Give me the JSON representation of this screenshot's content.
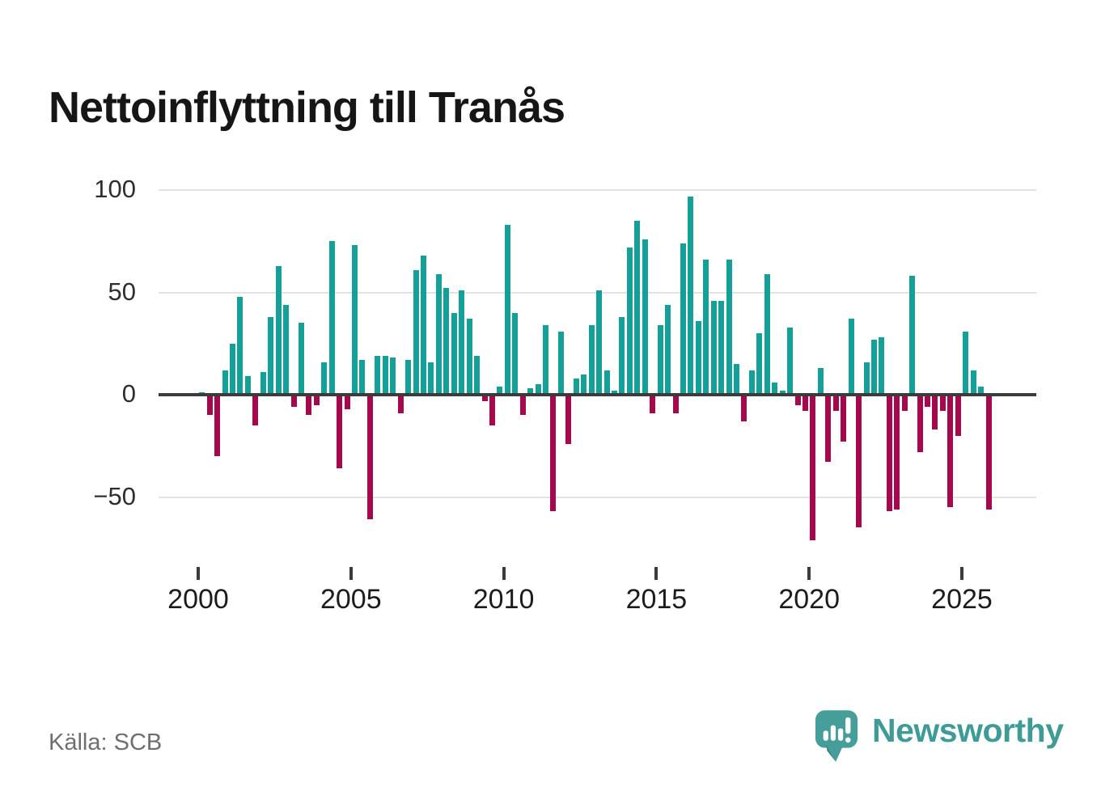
{
  "title": "Nettoinflyttning till Tranås",
  "source": "Källa: SCB",
  "logo": {
    "text": "Newsworthy"
  },
  "colors": {
    "positive_bar": "#14a099",
    "negative_bar": "#a5084d",
    "gridline": "#e3e3e3",
    "zero_axis": "#3b3b3b",
    "logo_teal": "#459e99",
    "logo_text": "#3e9b95"
  },
  "chart_data": {
    "type": "bar",
    "title": "Nettoinflyttning till Tranås",
    "xlabel": "",
    "ylabel": "",
    "frequency": "quarterly",
    "grid": true,
    "legend": "none",
    "ylim": [
      -84,
      104
    ],
    "y_ticks": [
      {
        "label": "100",
        "value": 100
      },
      {
        "label": "50",
        "value": 50
      },
      {
        "label": "0",
        "value": 0
      },
      {
        "label": "−50",
        "value": -50
      }
    ],
    "x_ticks": [
      {
        "label": "2000",
        "year": 2000
      },
      {
        "label": "2005",
        "year": 2005
      },
      {
        "label": "2010",
        "year": 2010
      },
      {
        "label": "2015",
        "year": 2015
      },
      {
        "label": "2020",
        "year": 2020
      },
      {
        "label": "2025",
        "year": 2025
      }
    ],
    "categories": [
      "2000Q1",
      "2000Q2",
      "2000Q3",
      "2000Q4",
      "2001Q1",
      "2001Q2",
      "2001Q3",
      "2001Q4",
      "2002Q1",
      "2002Q2",
      "2002Q3",
      "2002Q4",
      "2003Q1",
      "2003Q2",
      "2003Q3",
      "2003Q4",
      "2004Q1",
      "2004Q2",
      "2004Q3",
      "2004Q4",
      "2005Q1",
      "2005Q2",
      "2005Q3",
      "2005Q4",
      "2006Q1",
      "2006Q2",
      "2006Q3",
      "2006Q4",
      "2007Q1",
      "2007Q2",
      "2007Q3",
      "2007Q4",
      "2008Q1",
      "2008Q2",
      "2008Q3",
      "2008Q4",
      "2009Q1",
      "2009Q2",
      "2009Q3",
      "2009Q4",
      "2010Q1",
      "2010Q2",
      "2010Q3",
      "2010Q4",
      "2011Q1",
      "2011Q2",
      "2011Q3",
      "2011Q4",
      "2012Q1",
      "2012Q2",
      "2012Q3",
      "2012Q4",
      "2013Q1",
      "2013Q2",
      "2013Q3",
      "2013Q4",
      "2014Q1",
      "2014Q2",
      "2014Q3",
      "2014Q4",
      "2015Q1",
      "2015Q2",
      "2015Q3",
      "2015Q4",
      "2016Q1",
      "2016Q2",
      "2016Q3",
      "2016Q4",
      "2017Q1",
      "2017Q2",
      "2017Q3",
      "2017Q4",
      "2018Q1",
      "2018Q2",
      "2018Q3",
      "2018Q4",
      "2019Q1",
      "2019Q2",
      "2019Q3",
      "2019Q4",
      "2020Q1",
      "2020Q2",
      "2020Q3",
      "2020Q4",
      "2021Q1",
      "2021Q2",
      "2021Q3",
      "2021Q4",
      "2022Q1",
      "2022Q2",
      "2022Q3",
      "2022Q4",
      "2023Q1",
      "2023Q2",
      "2023Q3",
      "2023Q4",
      "2024Q1",
      "2024Q2",
      "2024Q3",
      "2024Q4",
      "2025Q1",
      "2025Q2",
      "2025Q3",
      "2025Q4"
    ],
    "values": [
      1,
      -10,
      -30,
      12,
      25,
      48,
      9,
      -15,
      11,
      38,
      63,
      44,
      -6,
      35,
      -10,
      -5,
      16,
      75,
      -36,
      -7,
      73,
      17,
      -61,
      19,
      19,
      18,
      -9,
      17,
      61,
      68,
      16,
      59,
      52,
      40,
      51,
      37,
      19,
      -3,
      -15,
      4,
      83,
      40,
      -10,
      3,
      5,
      34,
      -57,
      31,
      -24,
      8,
      10,
      34,
      51,
      12,
      2,
      38,
      72,
      85,
      76,
      -9,
      34,
      44,
      -9,
      74,
      97,
      36,
      66,
      46,
      46,
      66,
      15,
      -13,
      12,
      30,
      59,
      6,
      2,
      33,
      -5,
      -8,
      -71,
      13,
      -33,
      -8,
      -23,
      37,
      -65,
      16,
      27,
      28,
      -57,
      -56,
      -8,
      58,
      -28,
      -6,
      -17,
      -8,
      -55,
      -20,
      31,
      12,
      4,
      -56
    ]
  }
}
